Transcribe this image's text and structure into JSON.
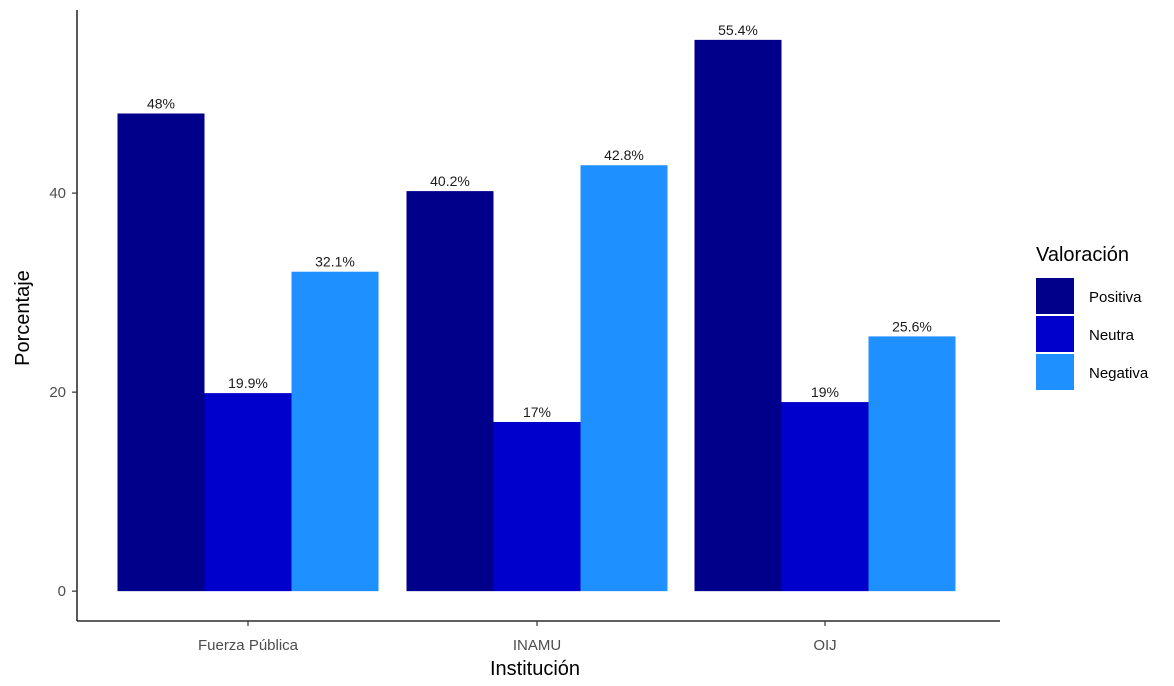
{
  "chart_data": {
    "type": "bar",
    "categories": [
      "Fuerza Pública",
      "INAMU",
      "OIJ"
    ],
    "series": [
      {
        "name": "Positiva",
        "color": "#00008B",
        "values": [
          48,
          40.2,
          55.4
        ],
        "labels": [
          "48%",
          "40.2%",
          "55.4%"
        ]
      },
      {
        "name": "Neutra",
        "color": "#0000CD",
        "values": [
          19.9,
          17,
          19
        ],
        "labels": [
          "19.9%",
          "17%",
          "19%"
        ]
      },
      {
        "name": "Negativa",
        "color": "#1E90FF",
        "values": [
          32.1,
          42.8,
          25.6
        ],
        "labels": [
          "32.1%",
          "42.8%",
          "25.6%"
        ]
      }
    ],
    "xlabel": "Institución",
    "ylabel": "Porcentaje",
    "yticks": [
      0,
      20,
      40
    ],
    "ylim": [
      -3,
      58.4
    ],
    "grid": false,
    "legend": {
      "title": "Valoración",
      "position": "right"
    }
  }
}
